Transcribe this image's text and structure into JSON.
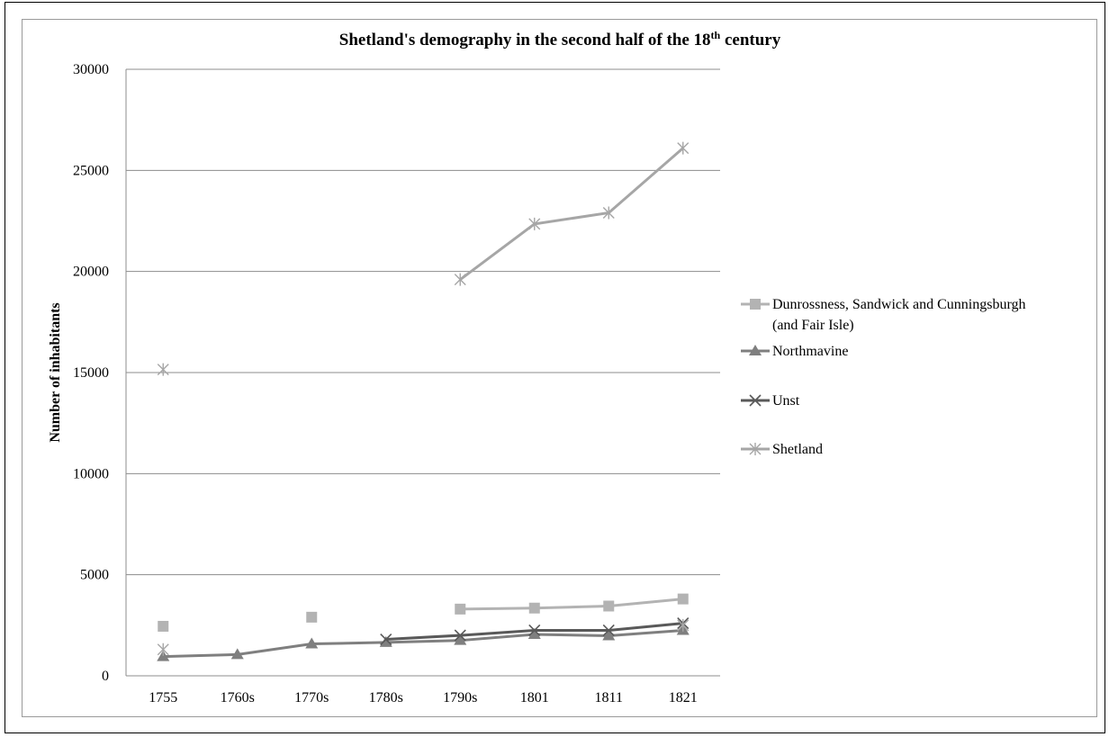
{
  "chart_data": {
    "type": "line",
    "title": "Shetland's demography in the second half of the 18",
    "title_sup": "th",
    "title_end": " century",
    "xlabel": "",
    "ylabel": "Number of inhabitants",
    "categories": [
      "1755",
      "1760s",
      "1770s",
      "1780s",
      "1790s",
      "1801",
      "1811",
      "1821"
    ],
    "ylim": [
      0,
      30000
    ],
    "yticks": [
      0,
      5000,
      10000,
      15000,
      20000,
      25000,
      30000
    ],
    "grid": true,
    "legend_position": "right",
    "series": [
      {
        "name": "Dunrossness, Sandwick and Cunningsburgh (and Fair Isle)",
        "name_lines": [
          "Dunrossness, Sandwick and Cunningsburgh",
          "(and Fair Isle)"
        ],
        "marker": "square",
        "color": "#b3b3b3",
        "values": [
          2450,
          null,
          2900,
          null,
          3300,
          3350,
          3450,
          3800
        ]
      },
      {
        "name": "Northmavine",
        "name_lines": [
          "Northmavine"
        ],
        "marker": "triangle",
        "color": "#7f7f7f",
        "values": [
          950,
          1050,
          1580,
          1650,
          1750,
          2050,
          1980,
          2250
        ]
      },
      {
        "name": "Unst",
        "name_lines": [
          "Unst"
        ],
        "marker": "x",
        "color": "#595959",
        "values": [
          null,
          null,
          null,
          1800,
          2000,
          2250,
          2250,
          2600
        ]
      },
      {
        "name": "Shetland",
        "name_lines": [
          "Shetland"
        ],
        "marker": "star",
        "color": "#a6a6a6",
        "values": [
          15150,
          null,
          null,
          null,
          19600,
          22350,
          22900,
          26100
        ],
        "extra_points": [
          [
            0,
            1300
          ],
          [
            7,
            2500
          ]
        ]
      }
    ]
  }
}
